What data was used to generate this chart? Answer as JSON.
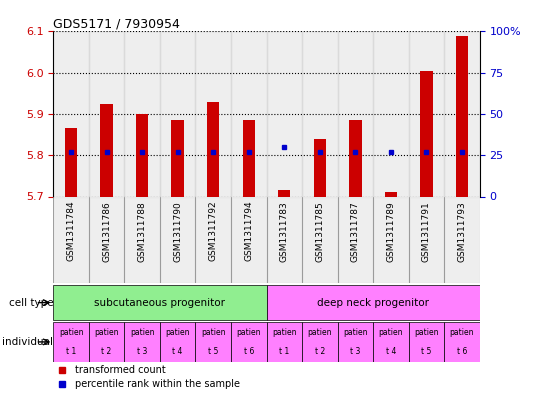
{
  "title": "GDS5171 / 7930954",
  "samples": [
    "GSM1311784",
    "GSM1311786",
    "GSM1311788",
    "GSM1311790",
    "GSM1311792",
    "GSM1311794",
    "GSM1311783",
    "GSM1311785",
    "GSM1311787",
    "GSM1311789",
    "GSM1311791",
    "GSM1311793"
  ],
  "red_values": [
    5.865,
    5.925,
    5.9,
    5.885,
    5.93,
    5.885,
    5.715,
    5.84,
    5.885,
    5.71,
    6.005,
    6.09
  ],
  "blue_values": [
    27,
    27,
    27,
    27,
    27,
    27,
    30,
    27,
    27,
    27,
    27,
    27
  ],
  "y_min": 5.7,
  "y_max": 6.1,
  "y_ticks": [
    5.7,
    5.8,
    5.9,
    6.0,
    6.1
  ],
  "y2_ticks": [
    0,
    25,
    50,
    75,
    100
  ],
  "cell_type_labels": [
    "subcutaneous progenitor",
    "deep neck progenitor"
  ],
  "individual_labels": [
    "t 1",
    "t 2",
    "t 3",
    "t 4",
    "t 5",
    "t 6",
    "t 1",
    "t 2",
    "t 3",
    "t 4",
    "t 5",
    "t 6"
  ],
  "cell_type_colors": [
    "#90ee90",
    "#ff80ff"
  ],
  "individual_color": "#ff80ff",
  "bar_color": "#cc0000",
  "dot_color": "#0000cc",
  "grid_color": "#000000",
  "background_color": "#ffffff",
  "tick_label_color_left": "#cc0000",
  "tick_label_color_right": "#0000cc"
}
